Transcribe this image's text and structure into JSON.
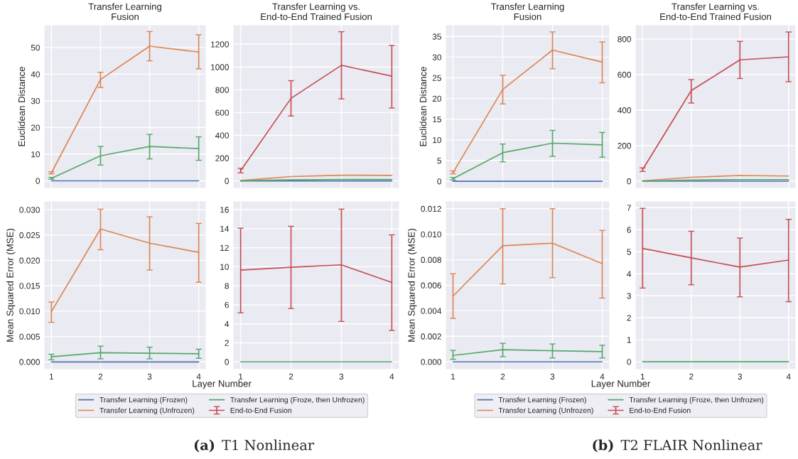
{
  "chart_data": [
    {
      "type": "line",
      "title": "Transfer Learning\nFusion",
      "ylabel": "Euclidean Distance",
      "x": [
        1,
        2,
        3,
        4
      ],
      "xlim": [
        0.85,
        4.15
      ],
      "xticks": [
        1,
        2,
        3,
        4
      ],
      "ylim": [
        -2.8,
        58.5
      ],
      "yticks": [
        0,
        10,
        20,
        30,
        40,
        50
      ],
      "tick_labels": "y",
      "grid": true,
      "series": [
        {
          "color": "#4c72b0",
          "values": [
            0,
            0,
            0,
            0
          ]
        },
        {
          "color": "#dd8452",
          "values": [
            3.0,
            38,
            50.5,
            48.3
          ],
          "errors": [
            [
              2.6,
              3.4
            ],
            [
              35,
              40.7
            ],
            [
              45,
              56
            ],
            [
              42,
              54.8
            ]
          ]
        },
        {
          "color": "#55a868",
          "values": [
            0.9,
            9.4,
            12.9,
            12.1
          ],
          "errors": [
            [
              0.6,
              1.3
            ],
            [
              5.9,
              12.9
            ],
            [
              8.2,
              17.4
            ],
            [
              7.7,
              16.5
            ]
          ]
        }
      ]
    },
    {
      "type": "line",
      "title": "Transfer Learning vs.\nEnd-to-End Trained Fusion",
      "x": [
        1,
        2,
        3,
        4
      ],
      "xlim": [
        0.85,
        4.15
      ],
      "xticks": [
        1,
        2,
        3,
        4
      ],
      "ylim": [
        -65,
        1370
      ],
      "yticks": [
        0,
        200,
        400,
        600,
        800,
        1000,
        1200
      ],
      "tick_labels": "y",
      "grid": true,
      "series": [
        {
          "color": "#4c72b0",
          "values": [
            0,
            0,
            0,
            0
          ]
        },
        {
          "color": "#dd8452",
          "values": [
            3,
            38,
            50,
            48
          ]
        },
        {
          "color": "#55a868",
          "values": [
            1,
            9,
            13,
            12
          ]
        },
        {
          "color": "#c44e52",
          "values": [
            90,
            725,
            1015,
            920
          ],
          "errors": [
            [
              70,
              110
            ],
            [
              570,
              880
            ],
            [
              720,
              1310
            ],
            [
              640,
              1190
            ]
          ]
        }
      ]
    },
    {
      "type": "line",
      "ylabel": "Mean Squared Error (MSE)",
      "xlabel": "Layer Number",
      "x": [
        1,
        2,
        3,
        4
      ],
      "xlim": [
        0.85,
        4.15
      ],
      "xticks": [
        1,
        2,
        3,
        4
      ],
      "ylim": [
        -0.0015,
        0.0317
      ],
      "yticks": [
        {
          "value": 0,
          "label": "0.000"
        },
        {
          "value": 0.005,
          "label": "0.005"
        },
        {
          "value": 0.01,
          "label": "0.010"
        },
        {
          "value": 0.015,
          "label": "0.015"
        },
        {
          "value": 0.02,
          "label": "0.020"
        },
        {
          "value": 0.025,
          "label": "0.025"
        },
        {
          "value": 0.03,
          "label": "0.030"
        }
      ],
      "grid": true,
      "series": [
        {
          "color": "#4c72b0",
          "values": [
            0,
            0,
            0,
            0
          ]
        },
        {
          "color": "#dd8452",
          "values": [
            0.0099,
            0.0262,
            0.0234,
            0.0216
          ],
          "errors": [
            [
              0.0078,
              0.0118
            ],
            [
              0.0221,
              0.0301
            ],
            [
              0.0181,
              0.0286
            ],
            [
              0.0157,
              0.0273
            ]
          ]
        },
        {
          "color": "#55a868",
          "values": [
            0.001,
            0.0018,
            0.0017,
            0.0016
          ],
          "errors": [
            [
              0.0004,
              0.0015
            ],
            [
              0.0006,
              0.0031
            ],
            [
              0.0006,
              0.0029
            ],
            [
              0.0007,
              0.0025
            ]
          ]
        }
      ]
    },
    {
      "type": "line",
      "x": [
        1,
        2,
        3,
        4
      ],
      "xlim": [
        0.85,
        4.15
      ],
      "xticks": [
        1,
        2,
        3,
        4
      ],
      "ylim": [
        -0.8,
        16.9
      ],
      "yticks": [
        0,
        2,
        4,
        6,
        8,
        10,
        12,
        14,
        16
      ],
      "grid": true,
      "legend": "bottom",
      "annotations": [
        "(a) T1 Nonlinear"
      ],
      "series": [
        {
          "name": "Transfer Learning (Frozen)",
          "color": "#4c72b0",
          "values": [
            null,
            null,
            null,
            null
          ]
        },
        {
          "name": "Transfer Learning (Unfrozen)",
          "color": "#dd8452",
          "values": [
            null,
            null,
            null,
            null
          ]
        },
        {
          "name": "Transfer Learning (Froze, then Unfrozen)",
          "color": "#55a868",
          "values": [
            0,
            0,
            0,
            0
          ]
        },
        {
          "name": "End-to-End Fusion",
          "color": "#c44e52",
          "values": [
            9.65,
            9.95,
            10.2,
            8.35
          ],
          "errors": [
            [
              5.15,
              14.05
            ],
            [
              5.6,
              14.25
            ],
            [
              4.25,
              16.05
            ],
            [
              3.3,
              13.35
            ]
          ]
        }
      ]
    },
    {
      "type": "line",
      "title": "Transfer Learning\nFusion",
      "ylabel": "Euclidean Distance",
      "x": [
        1,
        2,
        3,
        4
      ],
      "xlim": [
        0.85,
        4.15
      ],
      "xticks": [
        1,
        2,
        3,
        4
      ],
      "ylim": [
        -1.7,
        37.8
      ],
      "yticks": [
        0,
        5,
        10,
        15,
        20,
        25,
        30,
        35
      ],
      "tick_labels": "y",
      "grid": true,
      "series": [
        {
          "color": "#4c72b0",
          "values": [
            0,
            0,
            0,
            0
          ]
        },
        {
          "color": "#dd8452",
          "values": [
            2.1,
            22.2,
            31.7,
            28.8
          ],
          "errors": [
            [
              1.8,
              2.5
            ],
            [
              18.7,
              25.6
            ],
            [
              27.2,
              36.1
            ],
            [
              23.8,
              33.7
            ]
          ]
        },
        {
          "color": "#55a868",
          "values": [
            0.6,
            6.9,
            9.2,
            8.8
          ],
          "errors": [
            [
              0.3,
              0.9
            ],
            [
              4.7,
              9.0
            ],
            [
              6.0,
              12.3
            ],
            [
              5.8,
              11.8
            ]
          ]
        }
      ]
    },
    {
      "type": "line",
      "title": "Transfer Learning vs.\nEnd-to-End Trained Fusion",
      "x": [
        1,
        2,
        3,
        4
      ],
      "xlim": [
        0.85,
        4.15
      ],
      "xticks": [
        1,
        2,
        3,
        4
      ],
      "ylim": [
        -40,
        880
      ],
      "yticks": [
        0,
        200,
        400,
        600,
        800
      ],
      "tick_labels": "y",
      "grid": true,
      "series": [
        {
          "color": "#4c72b0",
          "values": [
            0,
            0,
            0,
            0
          ]
        },
        {
          "color": "#dd8452",
          "values": [
            2,
            22,
            32,
            29
          ]
        },
        {
          "color": "#55a868",
          "values": [
            1,
            7,
            9,
            9
          ]
        },
        {
          "color": "#c44e52",
          "values": [
            65,
            510,
            683,
            700
          ],
          "errors": [
            [
              55,
              75
            ],
            [
              440,
              572
            ],
            [
              578,
              787
            ],
            [
              560,
              840
            ]
          ]
        }
      ]
    },
    {
      "type": "line",
      "ylabel": "Mean Squared Error (MSE)",
      "xlabel": "Layer Number",
      "x": [
        1,
        2,
        3,
        4
      ],
      "xlim": [
        0.85,
        4.15
      ],
      "xticks": [
        1,
        2,
        3,
        4
      ],
      "ylim": [
        -0.0006,
        0.0126
      ],
      "yticks": [
        {
          "value": 0,
          "label": "0.000"
        },
        {
          "value": 0.002,
          "label": "0.002"
        },
        {
          "value": 0.004,
          "label": "0.004"
        },
        {
          "value": 0.006,
          "label": "0.006"
        },
        {
          "value": 0.008,
          "label": "0.008"
        },
        {
          "value": 0.01,
          "label": "0.010"
        },
        {
          "value": 0.012,
          "label": "0.012"
        }
      ],
      "grid": true,
      "series": [
        {
          "color": "#4c72b0",
          "values": [
            0,
            0,
            0,
            0
          ]
        },
        {
          "color": "#dd8452",
          "values": [
            0.00515,
            0.0091,
            0.0093,
            0.0077
          ],
          "errors": [
            [
              0.0034,
              0.0069
            ],
            [
              0.0061,
              0.012
            ],
            [
              0.0066,
              0.012
            ],
            [
              0.005,
              0.0103
            ]
          ]
        },
        {
          "color": "#55a868",
          "values": [
            0.0005,
            0.00095,
            0.00087,
            0.0008
          ],
          "errors": [
            [
              0.0002,
              0.0009
            ],
            [
              0.0004,
              0.00145
            ],
            [
              0.0003,
              0.0014
            ],
            [
              0.0003,
              0.0013
            ]
          ]
        }
      ]
    },
    {
      "type": "line",
      "x": [
        1,
        2,
        3,
        4
      ],
      "xlim": [
        0.85,
        4.15
      ],
      "xticks": [
        1,
        2,
        3,
        4
      ],
      "ylim": [
        -0.35,
        7.3
      ],
      "yticks": [
        0,
        1,
        2,
        3,
        4,
        5,
        6,
        7
      ],
      "grid": true,
      "legend": "bottom",
      "annotations": [
        "(b) T2 FLAIR Nonlinear"
      ],
      "series": [
        {
          "name": "Transfer Learning (Frozen)",
          "color": "#4c72b0",
          "values": [
            null,
            null,
            null,
            null
          ]
        },
        {
          "name": "Transfer Learning (Unfrozen)",
          "color": "#dd8452",
          "values": [
            null,
            null,
            null,
            null
          ]
        },
        {
          "name": "Transfer Learning (Froze, then Unfrozen)",
          "color": "#55a868",
          "values": [
            0,
            0,
            0,
            0
          ]
        },
        {
          "name": "End-to-End Fusion",
          "color": "#c44e52",
          "values": [
            5.15,
            4.72,
            4.3,
            4.62
          ],
          "errors": [
            [
              3.35,
              6.97
            ],
            [
              3.5,
              5.93
            ],
            [
              2.95,
              5.62
            ],
            [
              2.73,
              6.47
            ]
          ]
        }
      ]
    }
  ]
}
